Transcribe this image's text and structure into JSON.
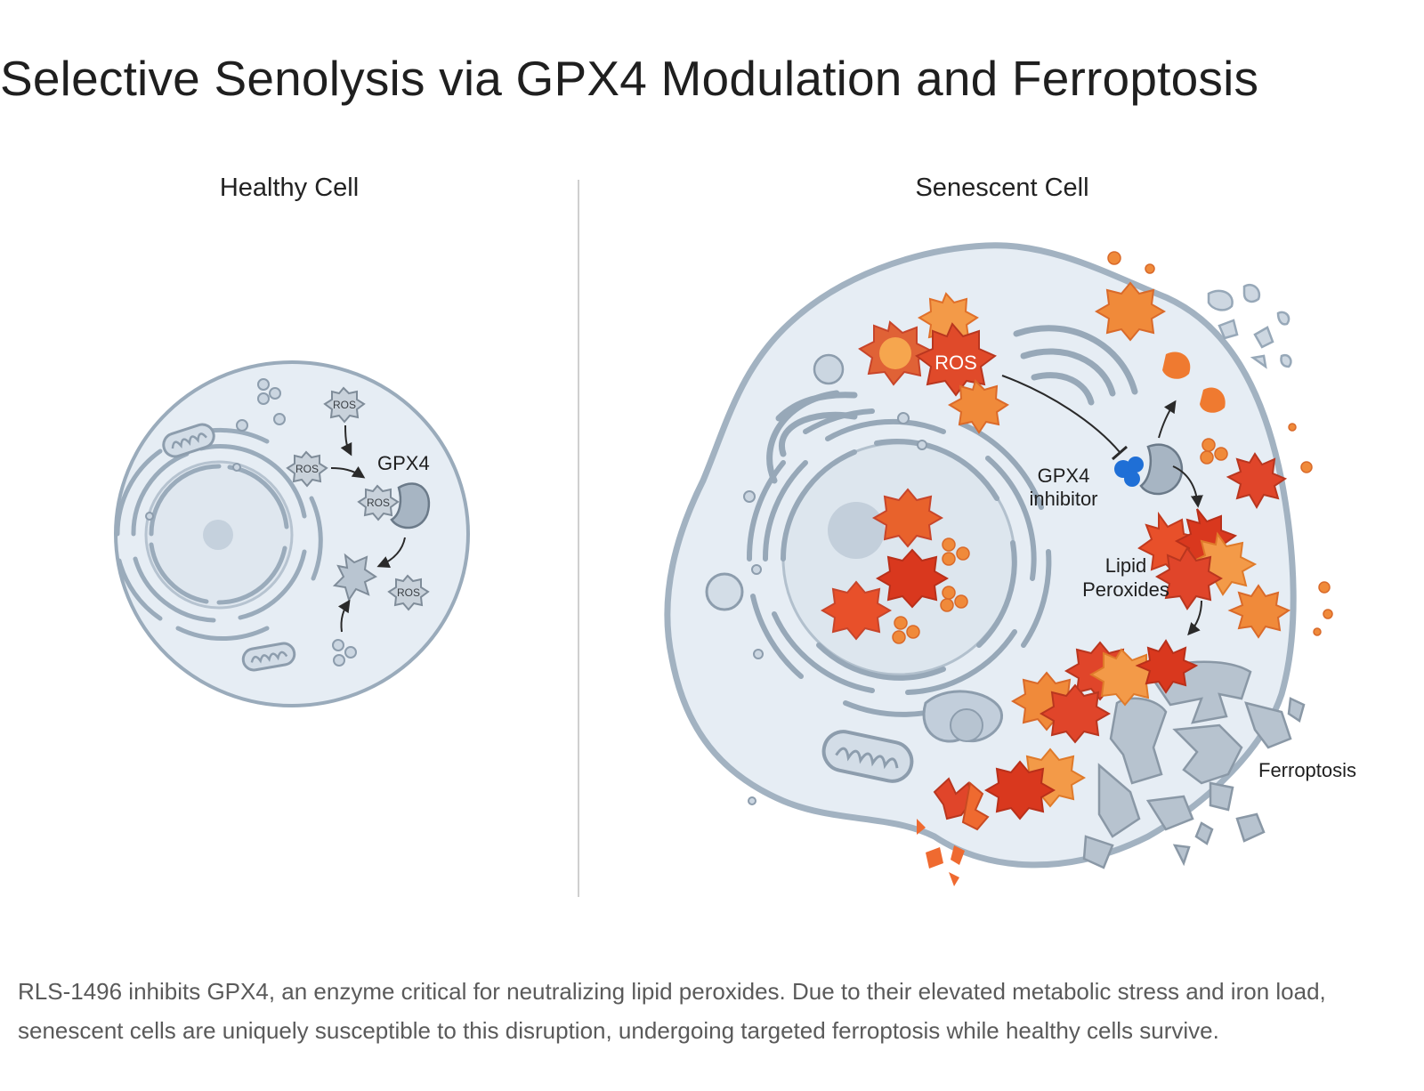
{
  "title": "Selective Senolysis via GPX4 Modulation and Ferroptosis",
  "panels": {
    "healthy": {
      "label": "Healthy Cell",
      "ros_label": "ROS",
      "gpx4_label": "GPX4"
    },
    "senescent": {
      "label": "Senescent Cell",
      "ros_label": "ROS",
      "inhibitor_label_line1": "GPX4",
      "inhibitor_label_line2": "inhibitor",
      "lipid_label_line1": "Lipid",
      "lipid_label_line2": "Peroxides",
      "ferroptosis_label": "Ferroptosis"
    }
  },
  "caption": "RLS-1496 inhibits GPX4, an enzyme critical for neutralizing lipid peroxides. Due to their elevated metabolic stress and iron load, senescent cells are uniquely susceptible to this disruption, undergoing targeted ferroptosis while healthy cells survive.",
  "colors": {
    "membrane": "#a9b8c6",
    "cytoplasm": "#e6edf4",
    "organelle": "#c7d3de",
    "organelle_stroke": "#8d9dad",
    "ros_red": "#d94a2c",
    "ros_orange": "#f08a3a",
    "inhibitor_blue": "#1f6fd6",
    "divider": "#cfcfcf"
  }
}
